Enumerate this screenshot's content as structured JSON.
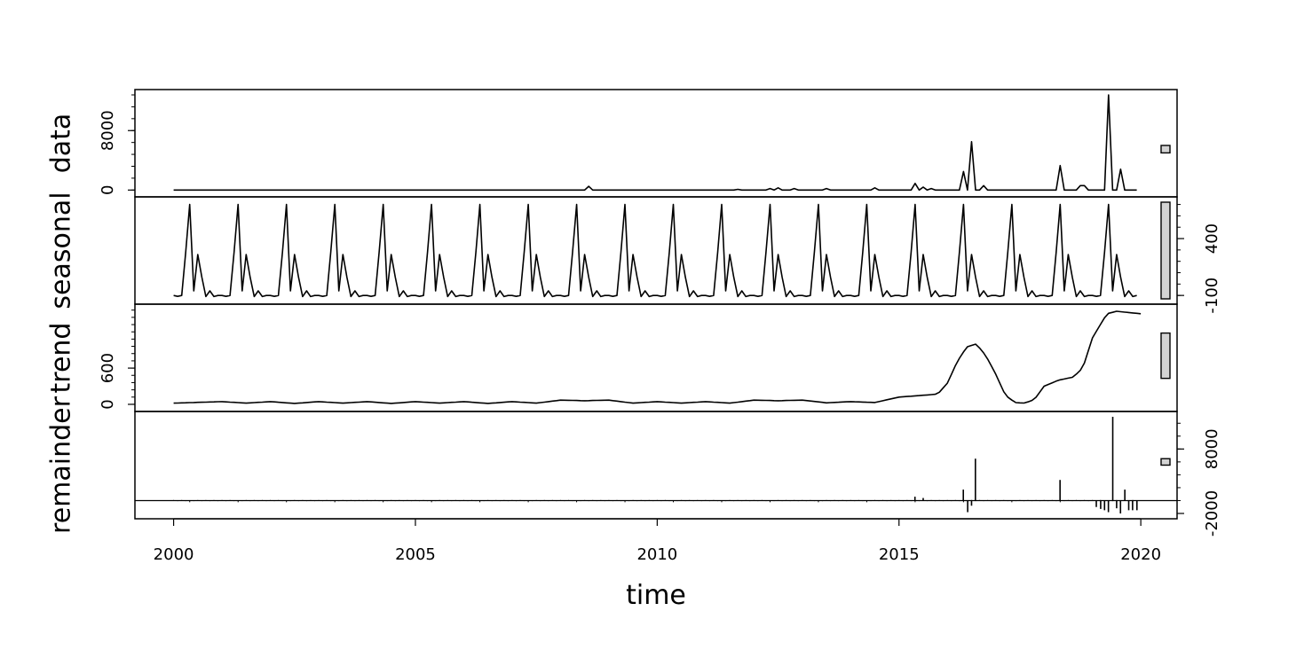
{
  "chart_data": {
    "type": "line",
    "xlabel": "time",
    "xlim": [
      1999.2,
      2020.75
    ],
    "x_ticks": [
      2000,
      2005,
      2010,
      2015,
      2020
    ],
    "frequency": 12,
    "start": 2000,
    "panels": [
      {
        "name": "data",
        "label": "data",
        "render": "line",
        "ylim": [
          -200,
          12800
        ],
        "y_ticks": [
          0,
          8000
        ],
        "tick_side": "left",
        "scale_bar": [
          5000,
          6000
        ],
        "values": [
          0,
          0,
          0,
          0,
          0,
          0,
          0,
          0,
          0,
          0,
          0,
          0,
          0,
          0,
          0,
          0,
          0,
          0,
          0,
          0,
          0,
          0,
          0,
          0,
          0,
          0,
          0,
          0,
          0,
          0,
          0,
          0,
          0,
          0,
          0,
          0,
          0,
          0,
          0,
          0,
          0,
          0,
          0,
          0,
          0,
          0,
          0,
          0,
          0,
          0,
          0,
          0,
          0,
          0,
          0,
          0,
          0,
          0,
          0,
          0,
          0,
          0,
          0,
          0,
          0,
          0,
          0,
          0,
          0,
          0,
          0,
          0,
          0,
          0,
          0,
          0,
          0,
          0,
          0,
          0,
          0,
          0,
          0,
          0,
          0,
          0,
          0,
          0,
          0,
          0,
          0,
          0,
          0,
          0,
          0,
          0,
          0,
          0,
          0,
          0,
          0,
          0,
          0,
          500,
          0,
          0,
          0,
          0,
          0,
          0,
          0,
          0,
          0,
          0,
          0,
          0,
          0,
          0,
          0,
          0,
          0,
          0,
          0,
          0,
          0,
          0,
          0,
          0,
          0,
          0,
          0,
          0,
          0,
          0,
          0,
          0,
          0,
          0,
          0,
          0,
          100,
          0,
          0,
          0,
          0,
          0,
          0,
          0,
          200,
          0,
          300,
          0,
          0,
          0,
          200,
          0,
          0,
          0,
          0,
          0,
          0,
          0,
          200,
          0,
          0,
          0,
          0,
          0,
          0,
          0,
          0,
          0,
          0,
          0,
          300,
          0,
          0,
          0,
          0,
          0,
          0,
          0,
          0,
          0,
          900,
          0,
          400,
          0,
          200,
          0,
          0,
          0,
          0,
          0,
          0,
          0,
          2500,
          0,
          6500,
          0,
          0,
          600,
          0,
          0,
          0,
          0,
          0,
          0,
          0,
          0,
          0,
          0,
          0,
          0,
          0,
          0,
          0,
          0,
          0,
          0,
          3300,
          0,
          0,
          0,
          0,
          600,
          600,
          0,
          0,
          0,
          0,
          0,
          12800,
          0,
          0,
          2800,
          0,
          0,
          0,
          0
        ]
      },
      {
        "name": "seasonal",
        "label": "seasonal",
        "render": "line",
        "ylim": [
          -130,
          720
        ],
        "y_ticks": [
          -100,
          400
        ],
        "tick_side": "right",
        "scale_bar": [
          -130,
          720
        ],
        "pattern": [
          -100,
          -108,
          -100,
          280,
          700,
          -60,
          260,
          60,
          -110,
          -60,
          -110,
          -100
        ],
        "years": 20
      },
      {
        "name": "trend",
        "label": "trend",
        "render": "line",
        "ylim": [
          -30,
          1570
        ],
        "y_ticks": [
          0,
          600
        ],
        "tick_side": "left",
        "scale_bar": [
          430,
          1180
        ],
        "knots_x": [
          2000.0,
          2001.0,
          2001.5,
          2002.0,
          2002.5,
          2003.0,
          2003.5,
          2004.0,
          2004.5,
          2005.0,
          2005.5,
          2006.0,
          2006.5,
          2007.0,
          2007.5,
          2008.0,
          2008.5,
          2009.0,
          2009.5,
          2010.0,
          2010.5,
          2011.0,
          2011.5,
          2012.0,
          2012.5,
          2013.0,
          2013.5,
          2014.0,
          2014.5,
          2015.0,
          2015.5,
          2015.8,
          2016.0,
          2016.2,
          2016.4,
          2016.6,
          2016.8,
          2017.0,
          2017.2,
          2017.4,
          2017.6,
          2017.8,
          2018.0,
          2018.3,
          2018.6,
          2018.8,
          2019.0,
          2019.3,
          2019.5,
          2020.0
        ],
        "knots_y": [
          20,
          45,
          20,
          45,
          15,
          45,
          20,
          45,
          15,
          45,
          20,
          45,
          15,
          45,
          20,
          70,
          60,
          70,
          20,
          45,
          20,
          45,
          20,
          70,
          60,
          70,
          25,
          45,
          30,
          120,
          150,
          170,
          350,
          700,
          950,
          1000,
          800,
          500,
          150,
          30,
          20,
          80,
          300,
          400,
          450,
          600,
          1100,
          1500,
          1540,
          1500
        ]
      },
      {
        "name": "remainder",
        "label": "remainder",
        "render": "bars",
        "ylim": [
          -2000,
          13000
        ],
        "y_ticks": [
          -2000,
          8000
        ],
        "tick_side": "right",
        "scale_bar": [
          5500,
          6500
        ],
        "baseline": 0,
        "bars_x": [
          2016.33,
          2016.42,
          2016.58,
          2018.33,
          2019.42,
          2019.67,
          2016.5,
          2019.08,
          2019.17,
          2019.25,
          2019.33,
          2019.5,
          2019.58,
          2019.75,
          2019.83,
          2019.92,
          2015.33,
          2015.5
        ],
        "bars_y": [
          1700,
          -1800,
          6500,
          3200,
          13000,
          1700,
          -800,
          -1000,
          -1300,
          -1500,
          -1800,
          -1200,
          -2000,
          -1500,
          -1500,
          -1500,
          600,
          400
        ]
      }
    ]
  }
}
